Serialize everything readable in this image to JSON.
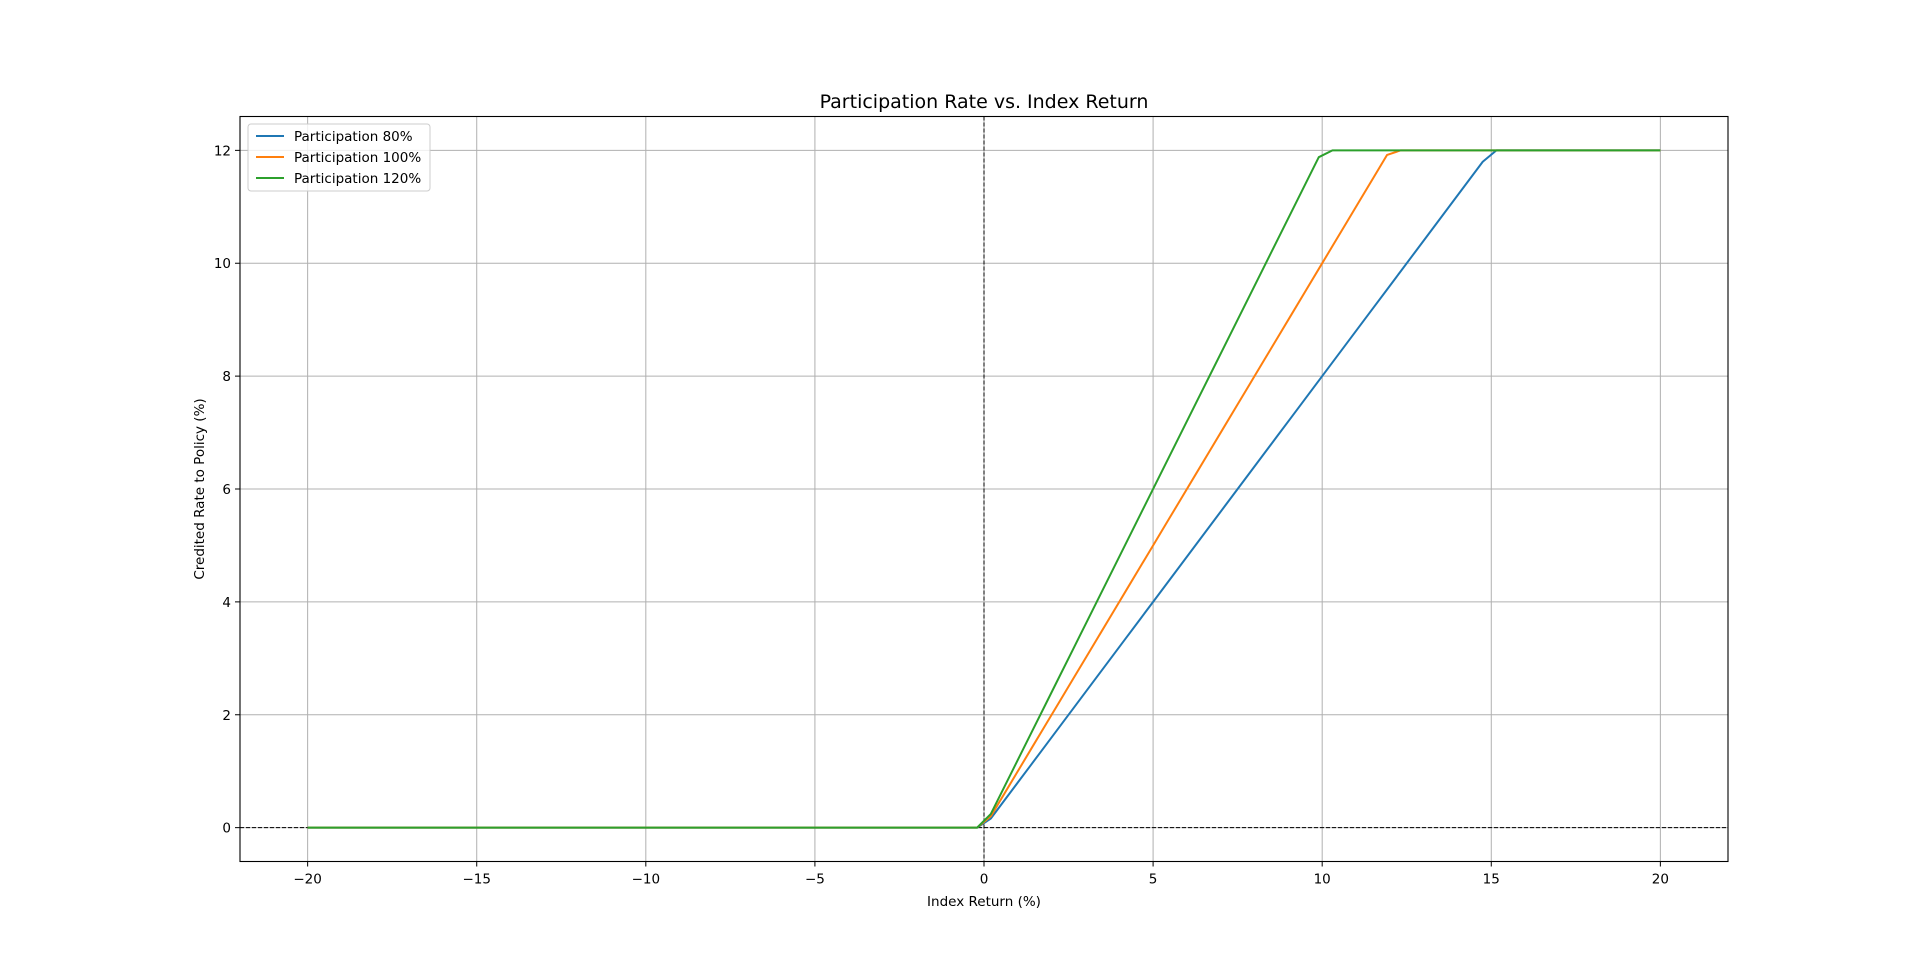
{
  "chart_data": {
    "type": "line",
    "title": "Participation Rate vs. Index Return",
    "xlabel": "Index Return (%)",
    "ylabel": "Credited Rate to Policy (%)",
    "xlim": [
      -22,
      22
    ],
    "ylim": [
      -0.6,
      12.6
    ],
    "xticks": [
      -20,
      -15,
      -10,
      -5,
      0,
      5,
      10,
      15,
      20
    ],
    "yticks": [
      0,
      2,
      4,
      6,
      8,
      10,
      12
    ],
    "xtick_labels": [
      "−20",
      "−15",
      "−10",
      "−5",
      "0",
      "5",
      "10",
      "15",
      "20"
    ],
    "ytick_labels": [
      "0",
      "2",
      "4",
      "6",
      "8",
      "10",
      "12"
    ],
    "grid": true,
    "legend_position": "upper-left",
    "reference_lines": [
      {
        "orientation": "vertical",
        "value": 0,
        "style": "dashed",
        "color": "#000000"
      },
      {
        "orientation": "horizontal",
        "value": 0,
        "style": "dashed",
        "color": "#000000"
      }
    ],
    "cap": 12,
    "floor": 0,
    "series": [
      {
        "name": "Participation 80%",
        "participation": 0.8,
        "color": "#1f77b4"
      },
      {
        "name": "Participation 100%",
        "participation": 1.0,
        "color": "#ff7f0e"
      },
      {
        "name": "Participation 120%",
        "participation": 1.2,
        "color": "#2ca02c"
      }
    ],
    "x_values": {
      "start": -20,
      "end": 20,
      "count": 100
    }
  }
}
